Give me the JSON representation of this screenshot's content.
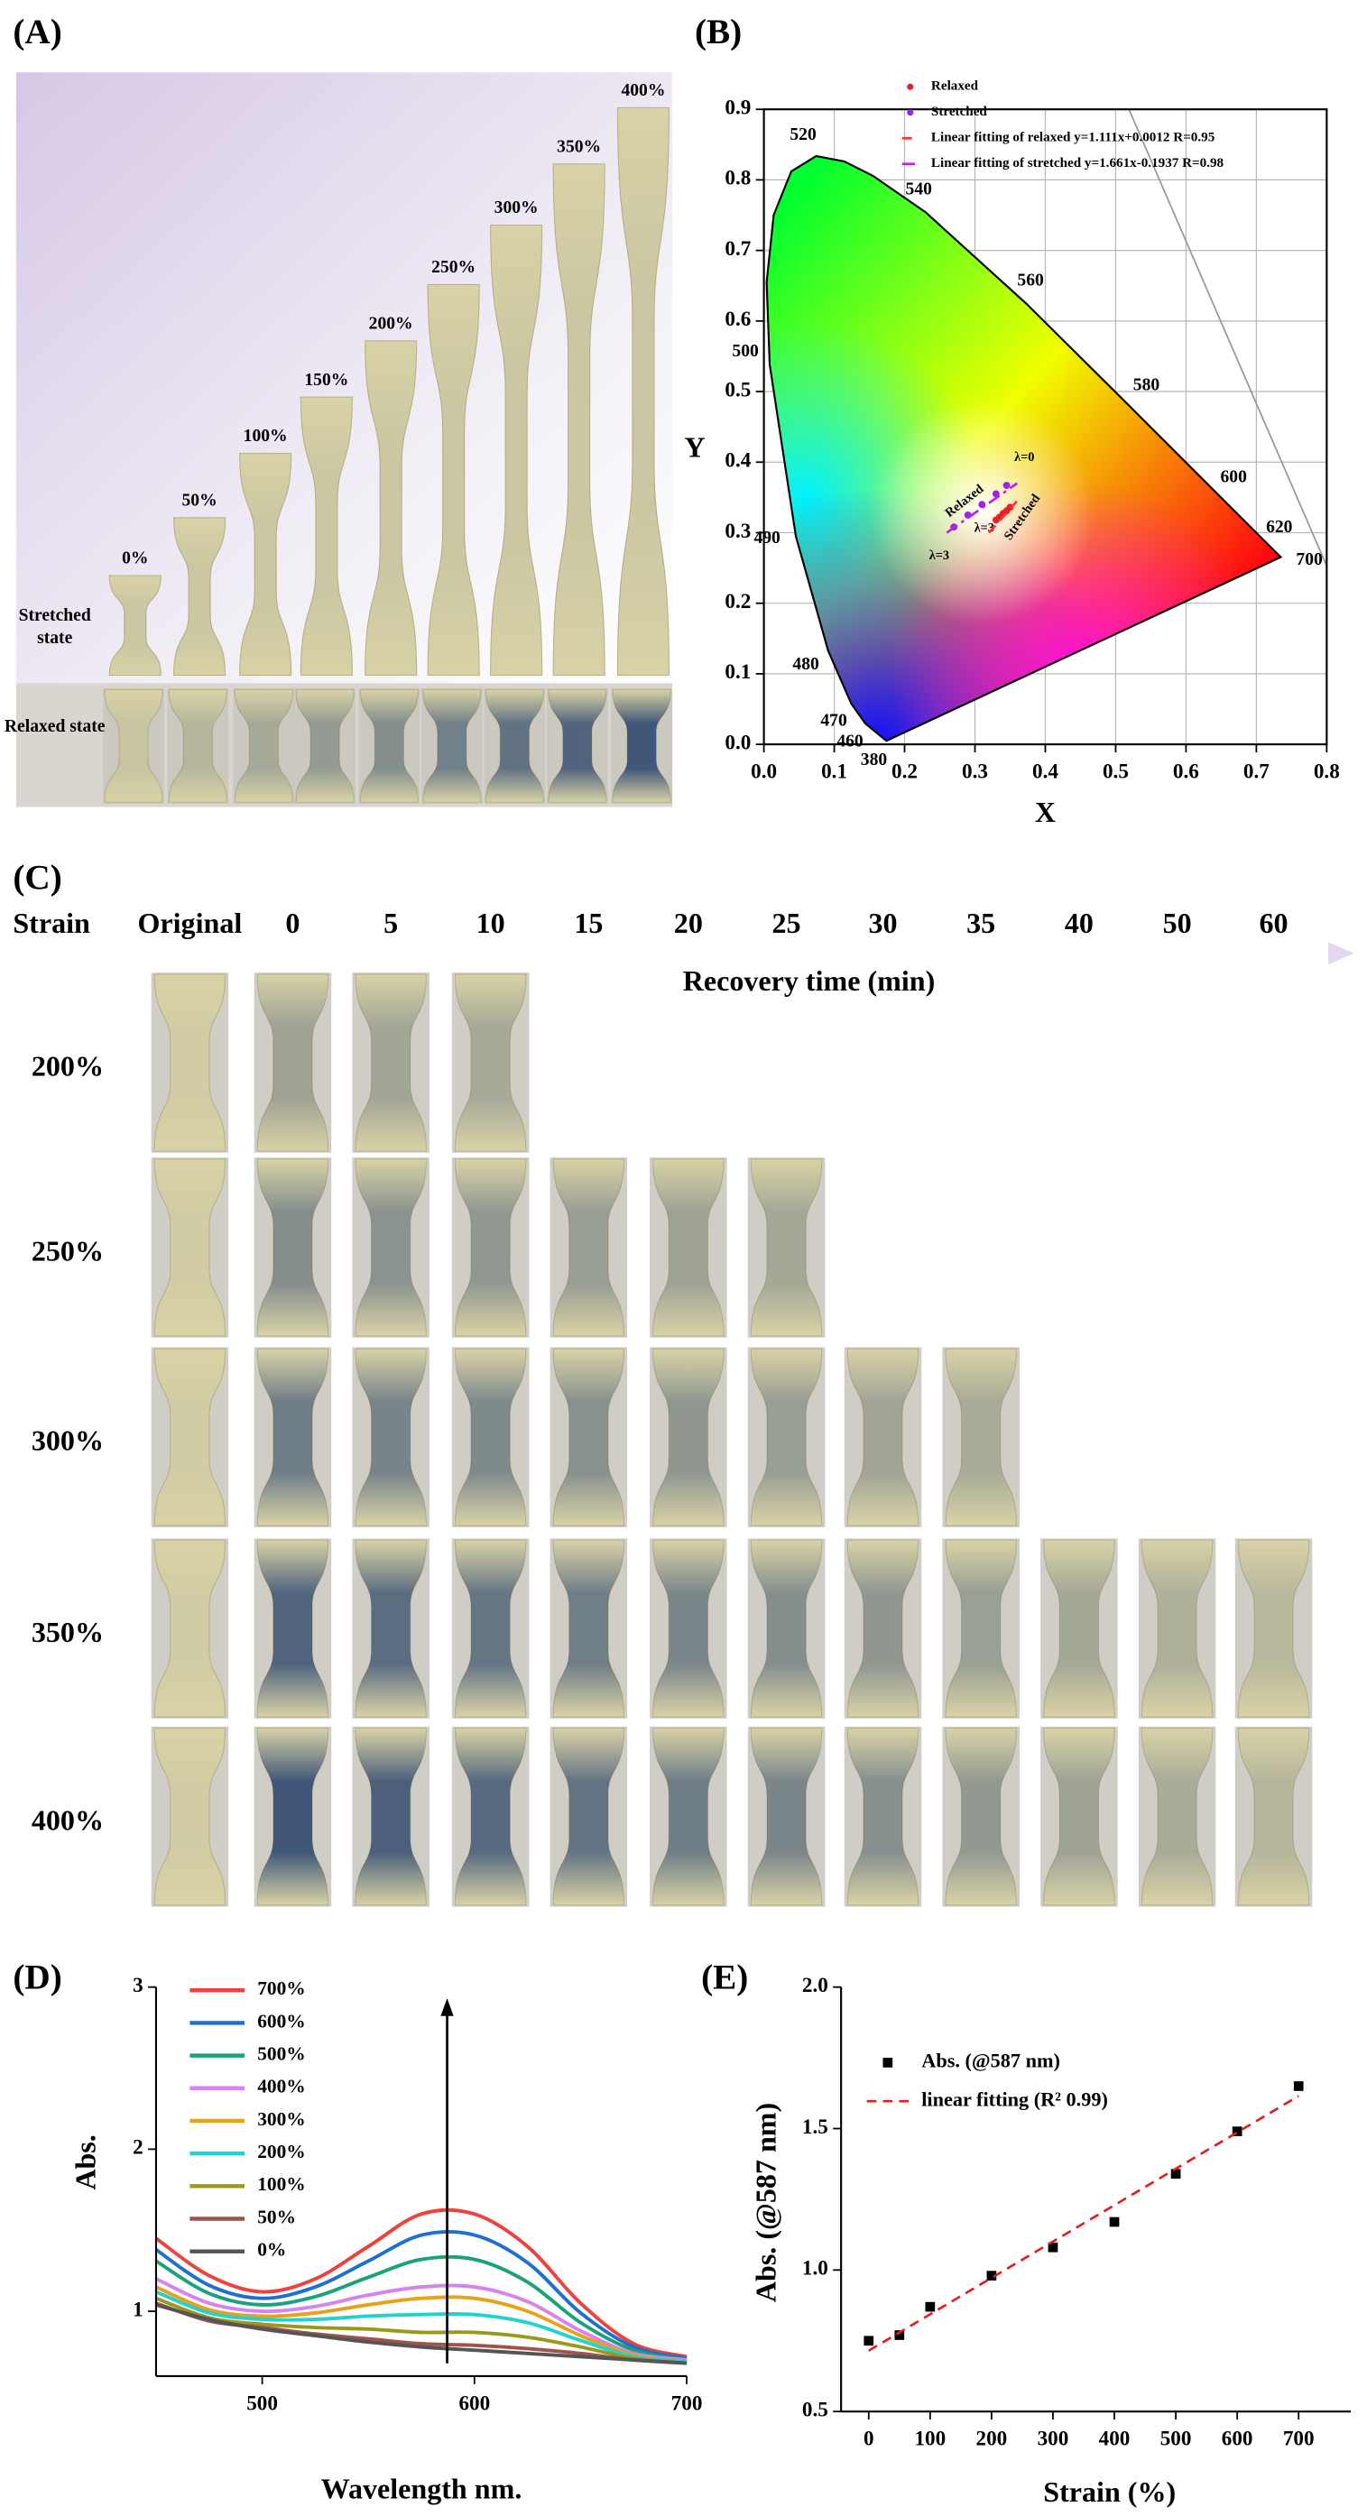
{
  "panel_labels": [
    "(A)",
    "(B)",
    "(C)",
    "(D)",
    "(E)"
  ],
  "panel_a": {
    "strains": [
      "0%",
      "50%",
      "100%",
      "150%",
      "200%",
      "250%",
      "300%",
      "350%",
      "400%"
    ],
    "rows": [
      "Stretched state",
      "Relaxed state"
    ]
  },
  "panel_c": {
    "strain_header": "Strain",
    "columns": [
      "Original",
      "0",
      "5",
      "10",
      "15",
      "20",
      "25",
      "30",
      "35",
      "40",
      "50",
      "60"
    ],
    "time_label": "Recovery time (min)",
    "strains": [
      "200%",
      "250%",
      "300%",
      "350%",
      "400%"
    ]
  },
  "chart_data": [
    {
      "type": "cie",
      "xlabel": "X",
      "ylabel": "Y",
      "xlim": [
        0,
        0.8
      ],
      "ylim": [
        0,
        0.9
      ],
      "xticks": [
        {
          "value": 0,
          "label": "0.0"
        },
        0.1,
        0.2,
        0.3,
        0.4,
        0.5,
        0.6,
        0.7,
        0.8
      ],
      "yticks": [
        {
          "value": 0,
          "label": "0.0"
        },
        0.1,
        0.2,
        0.3,
        0.4,
        0.5,
        0.6,
        0.7,
        0.8,
        0.9
      ],
      "grid": true,
      "locus": {
        "x": [
          0.1741,
          0.144,
          0.1241,
          0.0913,
          0.0454,
          0.0082,
          0.0039,
          0.0139,
          0.0389,
          0.0743,
          0.1142,
          0.1547,
          0.2296,
          0.3731,
          0.5125,
          0.627,
          0.6915,
          0.7347
        ],
        "values": [
          0.005,
          0.0297,
          0.0578,
          0.1327,
          0.295,
          0.5384,
          0.6548,
          0.7502,
          0.812,
          0.8338,
          0.8262,
          0.8059,
          0.7543,
          0.6245,
          0.4866,
          0.3725,
          0.3083,
          0.2653
        ],
        "labels": [
          "380",
          "460",
          "470",
          "480",
          "490",
          "500",
          null,
          null,
          null,
          "520",
          null,
          null,
          "540",
          "560",
          "580",
          "600",
          "620",
          "700"
        ]
      },
      "series": [
        {
          "name": "Relaxed",
          "color": "#e8202a",
          "mode": "markers",
          "x": [
            0.33,
            0.335,
            0.34,
            0.345,
            0.35
          ],
          "values": [
            0.318,
            0.322,
            0.327,
            0.331,
            0.336
          ]
        },
        {
          "name": "Stretched",
          "color": "#a020f0",
          "mode": "markers",
          "x": [
            0.27,
            0.29,
            0.31,
            0.33,
            0.345
          ],
          "values": [
            0.308,
            0.325,
            0.34,
            0.355,
            0.367
          ]
        },
        {
          "name": "Linear fitting of relaxed y=1.111x+0.0012 R=0.95",
          "color": "#ff3030",
          "mode": "line",
          "style": "dash",
          "x": [
            0.32,
            0.36
          ],
          "values": [
            0.3,
            0.345
          ]
        },
        {
          "name": "Linear fitting of stretched y=1.661x-0.1937 R=0.98",
          "color": "#c020e0",
          "mode": "line",
          "style": "dashdot",
          "x": [
            0.26,
            0.36
          ],
          "values": [
            0.3,
            0.37
          ]
        }
      ],
      "annotations": [
        "λ=0",
        "λ=3",
        "λ=3",
        "Relaxed",
        "Stretched"
      ]
    },
    {
      "type": "line",
      "xlabel": "Wavelength nm.",
      "ylabel": "Abs.",
      "x": [
        450,
        475,
        500,
        525,
        550,
        575,
        600,
        625,
        650,
        675,
        700
      ],
      "xlim": [
        450,
        700
      ],
      "xticks": [
        500,
        600,
        700
      ],
      "ylim": [
        0.6,
        3
      ],
      "yticks": [
        1,
        2,
        3
      ],
      "series": [
        {
          "name": "700%",
          "color": "#f0423c",
          "values": [
            1.45,
            1.22,
            1.12,
            1.2,
            1.4,
            1.6,
            1.6,
            1.4,
            1.05,
            0.8,
            0.72
          ]
        },
        {
          "name": "600%",
          "color": "#1f6fd1",
          "values": [
            1.38,
            1.16,
            1.08,
            1.15,
            1.31,
            1.47,
            1.47,
            1.3,
            0.99,
            0.78,
            0.71
          ]
        },
        {
          "name": "500%",
          "color": "#1aa37a",
          "values": [
            1.31,
            1.11,
            1.04,
            1.09,
            1.21,
            1.32,
            1.32,
            1.18,
            0.93,
            0.76,
            0.7
          ]
        },
        {
          "name": "400%",
          "color": "#d882f0",
          "values": [
            1.2,
            1.05,
            1.0,
            1.03,
            1.1,
            1.15,
            1.15,
            1.06,
            0.88,
            0.74,
            0.7
          ]
        },
        {
          "name": "300%",
          "color": "#e8a21a",
          "values": [
            1.15,
            1.01,
            0.97,
            0.99,
            1.04,
            1.08,
            1.08,
            1.0,
            0.85,
            0.73,
            0.69
          ]
        },
        {
          "name": "200%",
          "color": "#22d1d1",
          "values": [
            1.12,
            0.99,
            0.95,
            0.95,
            0.97,
            0.98,
            0.98,
            0.93,
            0.82,
            0.72,
            0.69
          ]
        },
        {
          "name": "100%",
          "color": "#9a9a1a",
          "values": [
            1.08,
            0.96,
            0.92,
            0.9,
            0.89,
            0.87,
            0.87,
            0.84,
            0.78,
            0.71,
            0.68
          ]
        },
        {
          "name": "50%",
          "color": "#a0524d",
          "values": [
            1.05,
            0.94,
            0.9,
            0.86,
            0.83,
            0.8,
            0.79,
            0.77,
            0.74,
            0.7,
            0.68
          ]
        },
        {
          "name": "0%",
          "color": "#555555",
          "values": [
            1.04,
            0.95,
            0.89,
            0.85,
            0.81,
            0.78,
            0.76,
            0.74,
            0.72,
            0.7,
            0.68
          ]
        }
      ]
    },
    {
      "type": "scatter",
      "xlabel": "Strain (%)",
      "ylabel": "Abs. (@587 nm)",
      "xlim": [
        -45,
        785
      ],
      "xticks": [
        0,
        100,
        200,
        300,
        400,
        500,
        600,
        700
      ],
      "ylim": [
        0.5,
        2
      ],
      "yticks": [
        0.5,
        {
          "value": 1,
          "label": "1.0"
        },
        1.5,
        {
          "value": 2,
          "label": "2.0"
        }
      ],
      "series": [
        {
          "name": "Abs. (@587 nm)",
          "color": "#000000",
          "mode": "markers",
          "x": [
            0,
            50,
            100,
            200,
            300,
            400,
            500,
            600,
            700
          ],
          "values": [
            0.75,
            0.77,
            0.87,
            0.98,
            1.08,
            1.17,
            1.34,
            1.49,
            1.65
          ]
        },
        {
          "name": "linear fitting (R² 0.99)",
          "color": "#e02020",
          "mode": "line",
          "style": "dash",
          "x": [
            0,
            700
          ],
          "values": [
            0.715,
            1.615
          ]
        }
      ]
    }
  ]
}
